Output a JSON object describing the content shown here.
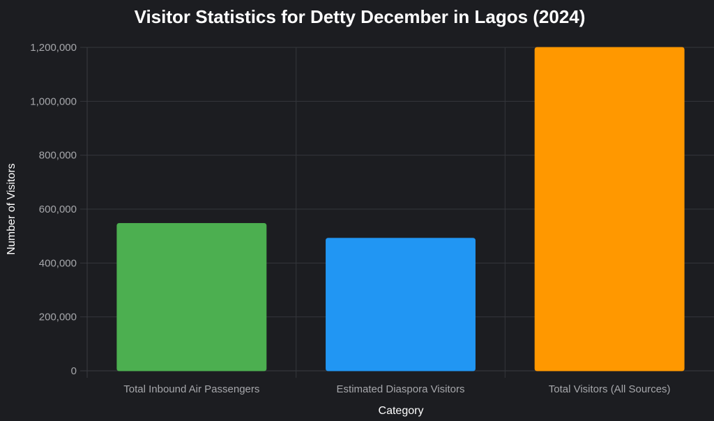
{
  "chart_data": {
    "type": "bar",
    "title": "Visitor Statistics for Detty December in Lagos (2024)",
    "xlabel": "Category",
    "ylabel": "Number of Visitors",
    "categories": [
      "Total Inbound Air Passengers",
      "Estimated Diaspora Visitors",
      "Total Visitors (All Sources)"
    ],
    "values": [
      547000,
      492000,
      1200000
    ],
    "colors": [
      "#4caf50",
      "#2196f3",
      "#ff9800"
    ],
    "ylim": [
      0,
      1200000
    ],
    "yticks": [
      0,
      200000,
      400000,
      600000,
      800000,
      1000000,
      1200000
    ],
    "ytick_labels": [
      "0",
      "200,000",
      "400,000",
      "600,000",
      "800,000",
      "1,000,000",
      "1,200,000"
    ],
    "grid": true,
    "legend": "none"
  }
}
